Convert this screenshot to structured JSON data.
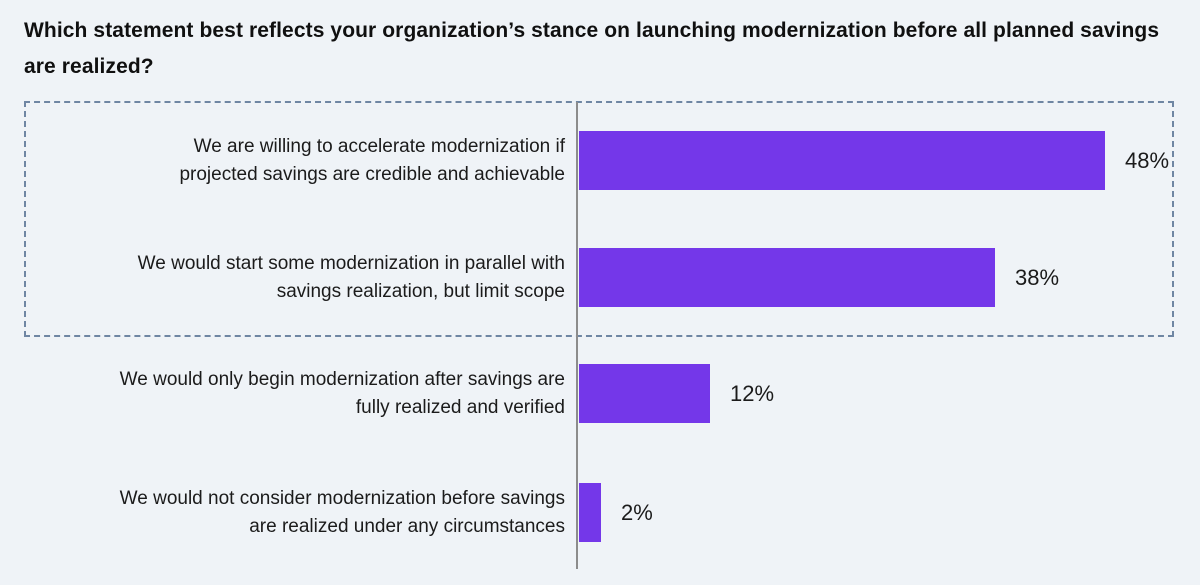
{
  "title": "Which statement best reflects your organization’s stance on launching modernization before all planned savings are realized?",
  "chart_data": {
    "type": "bar",
    "orientation": "horizontal",
    "title": "Which statement best reflects your organization’s stance on launching modernization before all planned savings are realized?",
    "unit": "%",
    "xlim": [
      0,
      52
    ],
    "grid": false,
    "legend": "none",
    "categories": [
      "We are willing to accelerate modernization if projected savings are credible and achievable",
      "We would start some modernization in parallel with savings realization, but limit scope",
      "We would only begin modernization after savings are fully realized and verified",
      "We would not consider modernization before savings are realized under any circumstances"
    ],
    "values": [
      48,
      38,
      12,
      2
    ],
    "rows": [
      {
        "label_lines": [
          "We are willing to accelerate modernization if",
          "projected savings are credible and achievable"
        ],
        "value": 48,
        "pct_label": "48%"
      },
      {
        "label_lines": [
          "We would start some modernization in parallel with",
          "savings realization, but limit scope"
        ],
        "value": 38,
        "pct_label": "38%"
      },
      {
        "label_lines": [
          "We would only begin modernization after savings are",
          "fully realized and verified"
        ],
        "value": 12,
        "pct_label": "12%"
      },
      {
        "label_lines": [
          "We would not consider modernization before savings",
          "are realized under any circumstances"
        ],
        "value": 2,
        "pct_label": "2%"
      }
    ],
    "annotations": [
      {
        "note": "dashed highlight box enclosing the top two bars"
      }
    ]
  },
  "colors": {
    "background": "#eff3f7",
    "bar": "#7437e9",
    "dashed_box_border": "#6f86a3",
    "axis_line": "#8c8c8c",
    "title_text": "#101010",
    "label_text": "#1b1b1b"
  }
}
